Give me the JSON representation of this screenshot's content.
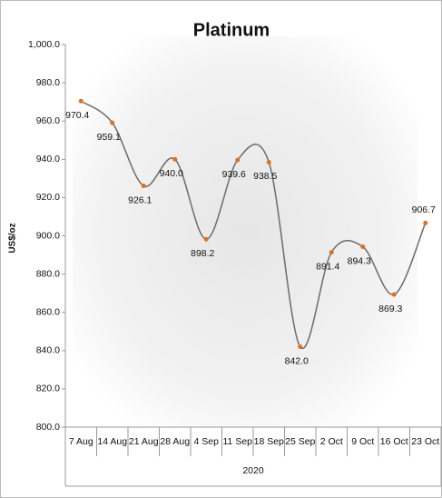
{
  "chart_data": {
    "type": "line",
    "title": "Platinum",
    "y_label": "US$/oz",
    "x_group_label": "2020",
    "categories": [
      "7 Aug",
      "14 Aug",
      "21 Aug",
      "28 Aug",
      "4 Sep",
      "11 Sep",
      "18 Sep",
      "25 Sep",
      "2 Oct",
      "9 Oct",
      "16 Oct",
      "23 Oct"
    ],
    "series": [
      {
        "name": "Platinum",
        "color": "#6b6b6b",
        "marker_color": "#e0701c",
        "values": [
          970.4,
          959.1,
          926.1,
          940.0,
          898.2,
          939.6,
          938.5,
          842.0,
          891.4,
          894.3,
          869.3,
          906.7
        ],
        "value_labels": [
          "970.4",
          "959.1",
          "926.1",
          "940.0",
          "898.2",
          "939.6",
          "938.5",
          "842.0",
          "891.4",
          "894.3",
          "869.3",
          "906.7"
        ]
      }
    ],
    "ylim": [
      800,
      1000
    ],
    "yticks": [
      {
        "value": 800,
        "label": "800.0"
      },
      {
        "value": 820,
        "label": "820.0"
      },
      {
        "value": 840,
        "label": "840.0"
      },
      {
        "value": 860,
        "label": "860.0"
      },
      {
        "value": 880,
        "label": "880.0"
      },
      {
        "value": 900,
        "label": "900.0"
      },
      {
        "value": 920,
        "label": "920.0"
      },
      {
        "value": 940,
        "label": "940.0"
      },
      {
        "value": 960,
        "label": "960.0"
      },
      {
        "value": 980,
        "label": "980.0"
      },
      {
        "value": 1000,
        "label": "1,000.0"
      }
    ],
    "grid": false,
    "smooth": true
  }
}
